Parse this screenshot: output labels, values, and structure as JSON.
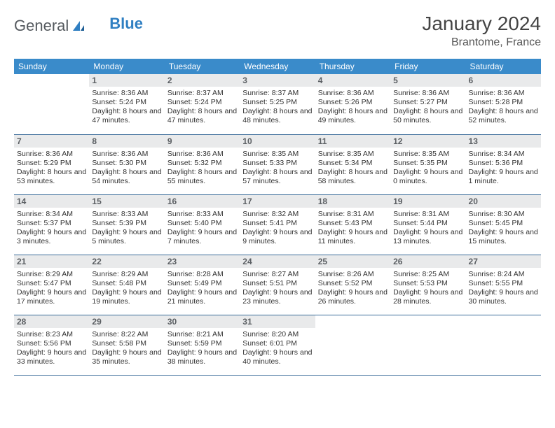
{
  "brand": {
    "part1": "General",
    "part2": "Blue"
  },
  "title": {
    "month": "January 2024",
    "location": "Brantome, France"
  },
  "colors": {
    "header_bg": "#3a8bca",
    "header_fg": "#ffffff",
    "daynum_bg": "#e9eaeb",
    "daynum_fg": "#5b5f63",
    "row_divider": "#3a6b99",
    "brand_gray": "#555a5f",
    "brand_blue": "#2f7fc2"
  },
  "weekdays": [
    "Sunday",
    "Monday",
    "Tuesday",
    "Wednesday",
    "Thursday",
    "Friday",
    "Saturday"
  ],
  "layout": {
    "columns": 7,
    "rows": 5,
    "first_weekday_index": 1,
    "days_in_month": 31
  },
  "days": {
    "1": {
      "sunrise": "Sunrise: 8:36 AM",
      "sunset": "Sunset: 5:24 PM",
      "daylight": "Daylight: 8 hours and 47 minutes."
    },
    "2": {
      "sunrise": "Sunrise: 8:37 AM",
      "sunset": "Sunset: 5:24 PM",
      "daylight": "Daylight: 8 hours and 47 minutes."
    },
    "3": {
      "sunrise": "Sunrise: 8:37 AM",
      "sunset": "Sunset: 5:25 PM",
      "daylight": "Daylight: 8 hours and 48 minutes."
    },
    "4": {
      "sunrise": "Sunrise: 8:36 AM",
      "sunset": "Sunset: 5:26 PM",
      "daylight": "Daylight: 8 hours and 49 minutes."
    },
    "5": {
      "sunrise": "Sunrise: 8:36 AM",
      "sunset": "Sunset: 5:27 PM",
      "daylight": "Daylight: 8 hours and 50 minutes."
    },
    "6": {
      "sunrise": "Sunrise: 8:36 AM",
      "sunset": "Sunset: 5:28 PM",
      "daylight": "Daylight: 8 hours and 52 minutes."
    },
    "7": {
      "sunrise": "Sunrise: 8:36 AM",
      "sunset": "Sunset: 5:29 PM",
      "daylight": "Daylight: 8 hours and 53 minutes."
    },
    "8": {
      "sunrise": "Sunrise: 8:36 AM",
      "sunset": "Sunset: 5:30 PM",
      "daylight": "Daylight: 8 hours and 54 minutes."
    },
    "9": {
      "sunrise": "Sunrise: 8:36 AM",
      "sunset": "Sunset: 5:32 PM",
      "daylight": "Daylight: 8 hours and 55 minutes."
    },
    "10": {
      "sunrise": "Sunrise: 8:35 AM",
      "sunset": "Sunset: 5:33 PM",
      "daylight": "Daylight: 8 hours and 57 minutes."
    },
    "11": {
      "sunrise": "Sunrise: 8:35 AM",
      "sunset": "Sunset: 5:34 PM",
      "daylight": "Daylight: 8 hours and 58 minutes."
    },
    "12": {
      "sunrise": "Sunrise: 8:35 AM",
      "sunset": "Sunset: 5:35 PM",
      "daylight": "Daylight: 9 hours and 0 minutes."
    },
    "13": {
      "sunrise": "Sunrise: 8:34 AM",
      "sunset": "Sunset: 5:36 PM",
      "daylight": "Daylight: 9 hours and 1 minute."
    },
    "14": {
      "sunrise": "Sunrise: 8:34 AM",
      "sunset": "Sunset: 5:37 PM",
      "daylight": "Daylight: 9 hours and 3 minutes."
    },
    "15": {
      "sunrise": "Sunrise: 8:33 AM",
      "sunset": "Sunset: 5:39 PM",
      "daylight": "Daylight: 9 hours and 5 minutes."
    },
    "16": {
      "sunrise": "Sunrise: 8:33 AM",
      "sunset": "Sunset: 5:40 PM",
      "daylight": "Daylight: 9 hours and 7 minutes."
    },
    "17": {
      "sunrise": "Sunrise: 8:32 AM",
      "sunset": "Sunset: 5:41 PM",
      "daylight": "Daylight: 9 hours and 9 minutes."
    },
    "18": {
      "sunrise": "Sunrise: 8:31 AM",
      "sunset": "Sunset: 5:43 PM",
      "daylight": "Daylight: 9 hours and 11 minutes."
    },
    "19": {
      "sunrise": "Sunrise: 8:31 AM",
      "sunset": "Sunset: 5:44 PM",
      "daylight": "Daylight: 9 hours and 13 minutes."
    },
    "20": {
      "sunrise": "Sunrise: 8:30 AM",
      "sunset": "Sunset: 5:45 PM",
      "daylight": "Daylight: 9 hours and 15 minutes."
    },
    "21": {
      "sunrise": "Sunrise: 8:29 AM",
      "sunset": "Sunset: 5:47 PM",
      "daylight": "Daylight: 9 hours and 17 minutes."
    },
    "22": {
      "sunrise": "Sunrise: 8:29 AM",
      "sunset": "Sunset: 5:48 PM",
      "daylight": "Daylight: 9 hours and 19 minutes."
    },
    "23": {
      "sunrise": "Sunrise: 8:28 AM",
      "sunset": "Sunset: 5:49 PM",
      "daylight": "Daylight: 9 hours and 21 minutes."
    },
    "24": {
      "sunrise": "Sunrise: 8:27 AM",
      "sunset": "Sunset: 5:51 PM",
      "daylight": "Daylight: 9 hours and 23 minutes."
    },
    "25": {
      "sunrise": "Sunrise: 8:26 AM",
      "sunset": "Sunset: 5:52 PM",
      "daylight": "Daylight: 9 hours and 26 minutes."
    },
    "26": {
      "sunrise": "Sunrise: 8:25 AM",
      "sunset": "Sunset: 5:53 PM",
      "daylight": "Daylight: 9 hours and 28 minutes."
    },
    "27": {
      "sunrise": "Sunrise: 8:24 AM",
      "sunset": "Sunset: 5:55 PM",
      "daylight": "Daylight: 9 hours and 30 minutes."
    },
    "28": {
      "sunrise": "Sunrise: 8:23 AM",
      "sunset": "Sunset: 5:56 PM",
      "daylight": "Daylight: 9 hours and 33 minutes."
    },
    "29": {
      "sunrise": "Sunrise: 8:22 AM",
      "sunset": "Sunset: 5:58 PM",
      "daylight": "Daylight: 9 hours and 35 minutes."
    },
    "30": {
      "sunrise": "Sunrise: 8:21 AM",
      "sunset": "Sunset: 5:59 PM",
      "daylight": "Daylight: 9 hours and 38 minutes."
    },
    "31": {
      "sunrise": "Sunrise: 8:20 AM",
      "sunset": "Sunset: 6:01 PM",
      "daylight": "Daylight: 9 hours and 40 minutes."
    }
  }
}
